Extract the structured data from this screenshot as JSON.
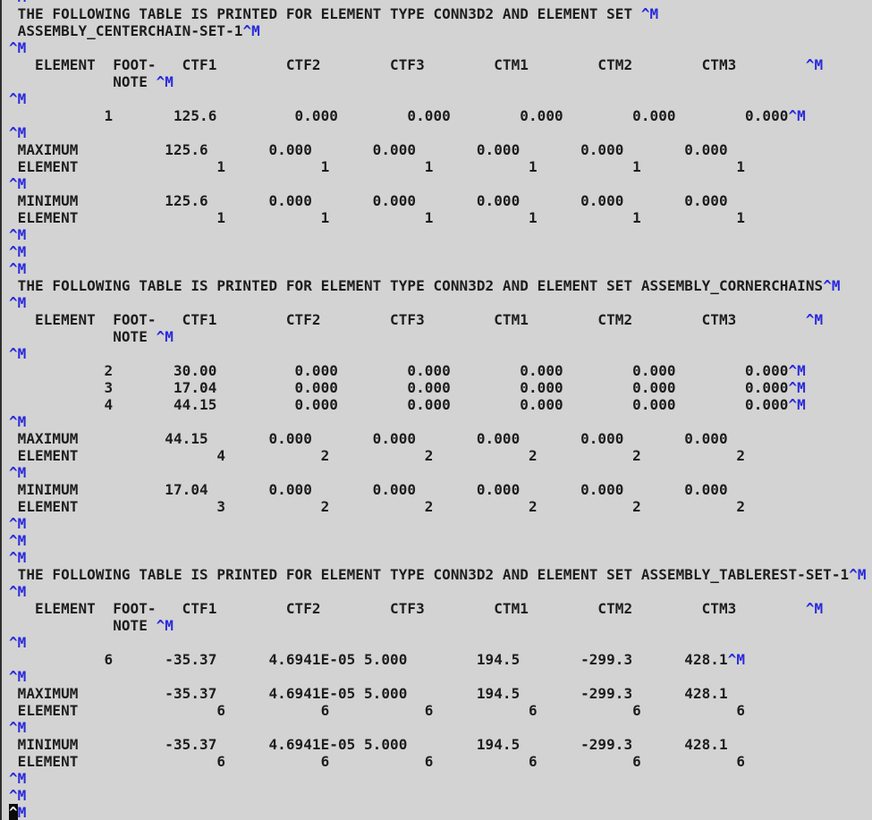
{
  "meta": {
    "app": "text viewer of ABAQUS .dat results file",
    "colors": {
      "background": "#d3d3d3",
      "text": "#1d1d1d",
      "control_char_blue": "#2828dc",
      "left_border": "#2f2f2f",
      "cursor_background": "#0a0a0a",
      "cursor_text": "#f2f2f2"
    },
    "control_marker": "^M",
    "cursor_position_text": "^M"
  },
  "tables": [
    {
      "title": "THE FOLLOWING TABLE IS PRINTED FOR ELEMENT TYPE CONN3D2 AND ELEMENT SET",
      "element_type": "CONN3D2",
      "element_set": "ASSEMBLY_CENTERCHAIN-SET-1",
      "columns": [
        "ELEMENT",
        "FOOT-NOTE",
        "CTF1",
        "CTF2",
        "CTF3",
        "CTM1",
        "CTM2",
        "CTM3"
      ],
      "rows": [
        {
          "element": "1",
          "values": [
            "125.6",
            "0.000",
            "0.000",
            "0.000",
            "0.000",
            "0.000"
          ]
        }
      ],
      "maximum": {
        "values": [
          "125.6",
          "0.000",
          "0.000",
          "0.000",
          "0.000",
          "0.000"
        ],
        "elements": [
          "1",
          "1",
          "1",
          "1",
          "1",
          "1"
        ]
      },
      "minimum": {
        "values": [
          "125.6",
          "0.000",
          "0.000",
          "0.000",
          "0.000",
          "0.000"
        ],
        "elements": [
          "1",
          "1",
          "1",
          "1",
          "1",
          "1"
        ]
      }
    },
    {
      "title": "THE FOLLOWING TABLE IS PRINTED FOR ELEMENT TYPE CONN3D2 AND ELEMENT SET ASSEMBLY_CORNERCHAINS",
      "element_type": "CONN3D2",
      "element_set": "ASSEMBLY_CORNERCHAINS",
      "columns": [
        "ELEMENT",
        "FOOT-NOTE",
        "CTF1",
        "CTF2",
        "CTF3",
        "CTM1",
        "CTM2",
        "CTM3"
      ],
      "rows": [
        {
          "element": "2",
          "values": [
            "30.00",
            "0.000",
            "0.000",
            "0.000",
            "0.000",
            "0.000"
          ]
        },
        {
          "element": "3",
          "values": [
            "17.04",
            "0.000",
            "0.000",
            "0.000",
            "0.000",
            "0.000"
          ]
        },
        {
          "element": "4",
          "values": [
            "44.15",
            "0.000",
            "0.000",
            "0.000",
            "0.000",
            "0.000"
          ]
        }
      ],
      "maximum": {
        "values": [
          "44.15",
          "0.000",
          "0.000",
          "0.000",
          "0.000",
          "0.000"
        ],
        "elements": [
          "4",
          "2",
          "2",
          "2",
          "2",
          "2"
        ]
      },
      "minimum": {
        "values": [
          "17.04",
          "0.000",
          "0.000",
          "0.000",
          "0.000",
          "0.000"
        ],
        "elements": [
          "3",
          "2",
          "2",
          "2",
          "2",
          "2"
        ]
      }
    },
    {
      "title": "THE FOLLOWING TABLE IS PRINTED FOR ELEMENT TYPE CONN3D2 AND ELEMENT SET ASSEMBLY_TABLEREST-SET-1",
      "element_type": "CONN3D2",
      "element_set": "ASSEMBLY_TABLEREST-SET-1",
      "columns": [
        "ELEMENT",
        "FOOT-NOTE",
        "CTF1",
        "CTF2",
        "CTF3",
        "CTM1",
        "CTM2",
        "CTM3"
      ],
      "rows": [
        {
          "element": "6",
          "values": [
            "-35.37",
            "4.6941E-05",
            "5.000",
            "194.5",
            "-299.3",
            "428.1"
          ]
        }
      ],
      "maximum": {
        "values": [
          "-35.37",
          "4.6941E-05",
          "5.000",
          "194.5",
          "-299.3",
          "428.1"
        ],
        "elements": [
          "6",
          "6",
          "6",
          "6",
          "6",
          "6"
        ]
      },
      "minimum": {
        "values": [
          "-35.37",
          "4.6941E-05",
          "5.000",
          "194.5",
          "-299.3",
          "428.1"
        ],
        "elements": [
          "6",
          "6",
          "6",
          "6",
          "6",
          "6"
        ]
      }
    }
  ],
  "terminal": {
    "lines": [
      [
        [
          "^M",
          "m"
        ]
      ],
      [
        [
          " THE FOLLOWING TABLE IS PRINTED FOR ELEMENT TYPE CONN3D2 AND ELEMENT SET ",
          "t"
        ],
        [
          "^M",
          "m"
        ]
      ],
      [
        [
          " ASSEMBLY_CENTERCHAIN-SET-1",
          "t"
        ],
        [
          "^M",
          "m"
        ]
      ],
      [
        [
          "^M",
          "m"
        ]
      ],
      [
        [
          "   ELEMENT  FOOT-   CTF1        CTF2        CTF3        CTM1        CTM2        CTM3        ",
          "t"
        ],
        [
          "^M",
          "m"
        ]
      ],
      [
        [
          "            NOTE ",
          "t"
        ],
        [
          "^M",
          "m"
        ]
      ],
      [
        [
          "^M",
          "m"
        ]
      ],
      [
        [
          "           1       125.6         0.000        0.000        0.000        0.000        0.000",
          "t"
        ],
        [
          "^M",
          "m"
        ]
      ],
      [
        [
          "^M",
          "m"
        ]
      ],
      [
        [
          " MAXIMUM          125.6       0.000       0.000       0.000       0.000       0.000",
          "t"
        ]
      ],
      [
        [
          " ELEMENT                1           1           1           1           1           1",
          "t"
        ]
      ],
      [
        [
          "^M",
          "m"
        ]
      ],
      [
        [
          " MINIMUM          125.6       0.000       0.000       0.000       0.000       0.000",
          "t"
        ]
      ],
      [
        [
          " ELEMENT                1           1           1           1           1           1",
          "t"
        ]
      ],
      [
        [
          "^M",
          "m"
        ]
      ],
      [
        [
          "^M",
          "m"
        ]
      ],
      [
        [
          "^M",
          "m"
        ]
      ],
      [
        [
          " THE FOLLOWING TABLE IS PRINTED FOR ELEMENT TYPE CONN3D2 AND ELEMENT SET ASSEMBLY_CORNERCHAINS",
          "t"
        ],
        [
          "^M",
          "m"
        ]
      ],
      [
        [
          "^M",
          "m"
        ]
      ],
      [
        [
          "   ELEMENT  FOOT-   CTF1        CTF2        CTF3        CTM1        CTM2        CTM3        ",
          "t"
        ],
        [
          "^M",
          "m"
        ]
      ],
      [
        [
          "            NOTE ",
          "t"
        ],
        [
          "^M",
          "m"
        ]
      ],
      [
        [
          "^M",
          "m"
        ]
      ],
      [
        [
          "           2       30.00         0.000        0.000        0.000        0.000        0.000",
          "t"
        ],
        [
          "^M",
          "m"
        ]
      ],
      [
        [
          "           3       17.04         0.000        0.000        0.000        0.000        0.000",
          "t"
        ],
        [
          "^M",
          "m"
        ]
      ],
      [
        [
          "           4       44.15         0.000        0.000        0.000        0.000        0.000",
          "t"
        ],
        [
          "^M",
          "m"
        ]
      ],
      [
        [
          "^M",
          "m"
        ]
      ],
      [
        [
          " MAXIMUM          44.15       0.000       0.000       0.000       0.000       0.000",
          "t"
        ]
      ],
      [
        [
          " ELEMENT                4           2           2           2           2           2",
          "t"
        ]
      ],
      [
        [
          "^M",
          "m"
        ]
      ],
      [
        [
          " MINIMUM          17.04       0.000       0.000       0.000       0.000       0.000",
          "t"
        ]
      ],
      [
        [
          " ELEMENT                3           2           2           2           2           2",
          "t"
        ]
      ],
      [
        [
          "^M",
          "m"
        ]
      ],
      [
        [
          "^M",
          "m"
        ]
      ],
      [
        [
          "^M",
          "m"
        ]
      ],
      [
        [
          " THE FOLLOWING TABLE IS PRINTED FOR ELEMENT TYPE CONN3D2 AND ELEMENT SET ASSEMBLY_TABLEREST-SET-1",
          "t"
        ],
        [
          "^M",
          "m"
        ]
      ],
      [
        [
          "^M",
          "m"
        ]
      ],
      [
        [
          "   ELEMENT  FOOT-   CTF1        CTF2        CTF3        CTM1        CTM2        CTM3        ",
          "t"
        ],
        [
          "^M",
          "m"
        ]
      ],
      [
        [
          "            NOTE ",
          "t"
        ],
        [
          "^M",
          "m"
        ]
      ],
      [
        [
          "^M",
          "m"
        ]
      ],
      [
        [
          "           6      -35.37      4.6941E-05 5.000        194.5       -299.3      428.1",
          "t"
        ],
        [
          "^M",
          "m"
        ]
      ],
      [
        [
          "^M",
          "m"
        ]
      ],
      [
        [
          " MAXIMUM          -35.37      4.6941E-05 5.000        194.5       -299.3      428.1",
          "t"
        ]
      ],
      [
        [
          " ELEMENT                6           6           6           6           6           6",
          "t"
        ]
      ],
      [
        [
          "^M",
          "m"
        ]
      ],
      [
        [
          " MINIMUM          -35.37      4.6941E-05 5.000        194.5       -299.3      428.1",
          "t"
        ]
      ],
      [
        [
          " ELEMENT                6           6           6           6           6           6",
          "t"
        ]
      ],
      [
        [
          "^M",
          "m"
        ]
      ],
      [
        [
          "^M",
          "m"
        ]
      ],
      [
        [
          "^",
          "c"
        ],
        [
          "M",
          "m"
        ]
      ]
    ]
  }
}
